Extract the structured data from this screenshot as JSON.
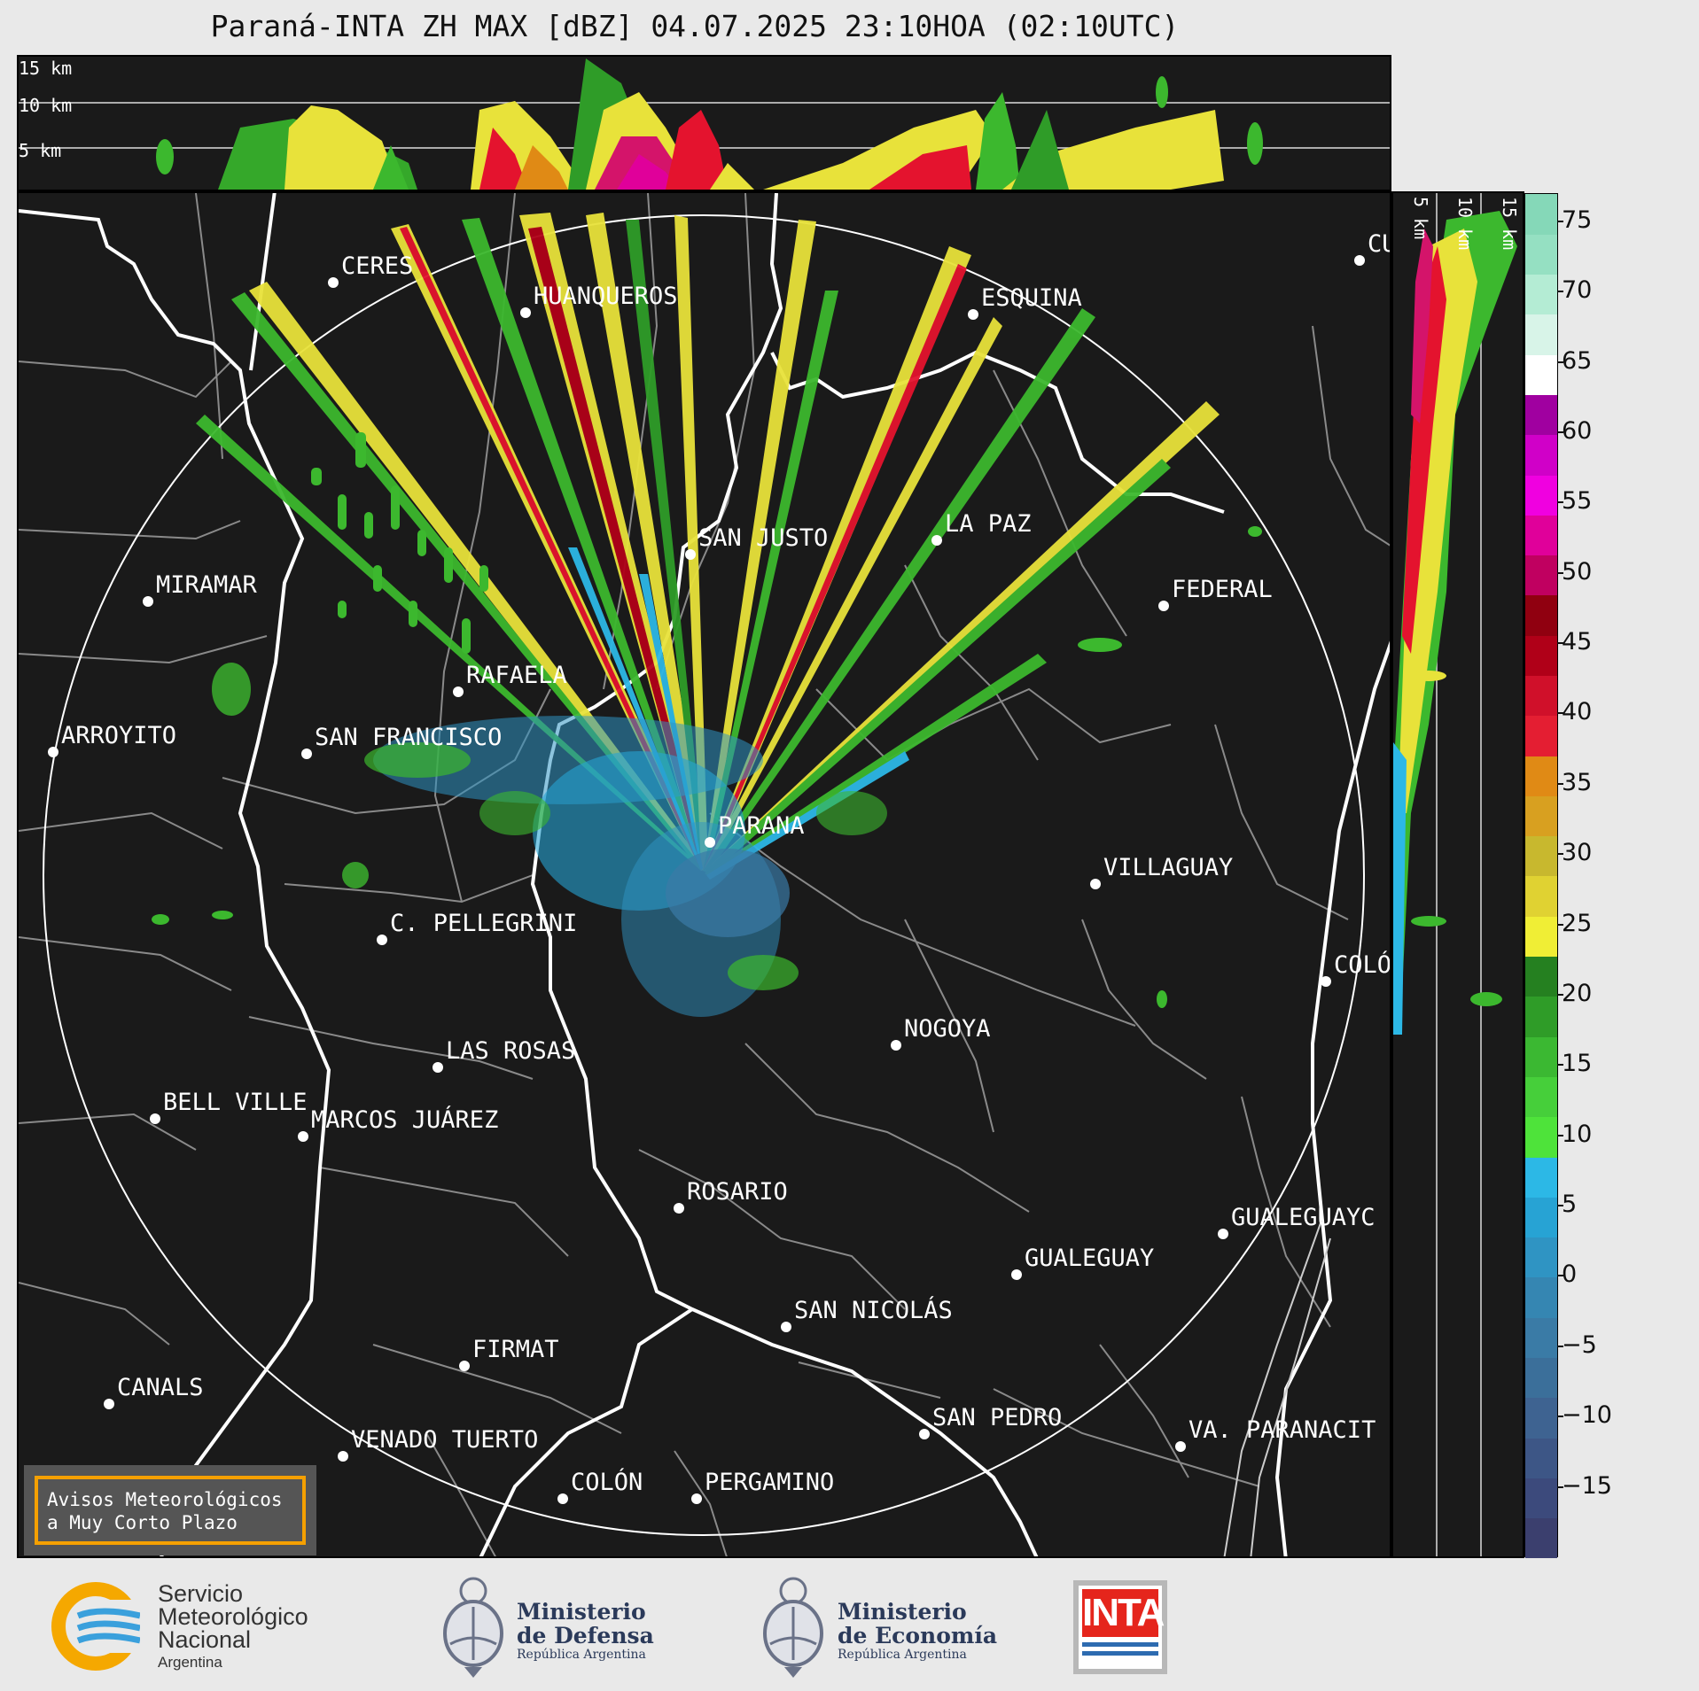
{
  "title": "Paraná-INTA ZH MAX [dBZ] 04.07.2025 23:10HOA (02:10UTC)",
  "top_panel": {
    "height_labels": [
      "15 km",
      "10 km",
      "5 km"
    ]
  },
  "side_panel": {
    "height_labels": [
      "5 km",
      "10 km",
      "15 km"
    ]
  },
  "colorbar": {
    "ticks": [
      "75",
      "70",
      "65",
      "60",
      "55",
      "50",
      "45",
      "40",
      "35",
      "30",
      "25",
      "20",
      "15",
      "10",
      "5",
      "0",
      "−5",
      "−10",
      "−15"
    ],
    "tick_values": [
      75,
      70,
      65,
      60,
      55,
      50,
      45,
      40,
      35,
      30,
      25,
      20,
      15,
      10,
      5,
      0,
      -5,
      -10,
      -15
    ],
    "range": [
      -20,
      77
    ],
    "colors": [
      "#3b3f6e",
      "#3c4a7c",
      "#3d5686",
      "#3e6391",
      "#3b6f9a",
      "#3a7ba6",
      "#3586b2",
      "#2f94c3",
      "#27a3d4",
      "#2cb8e6",
      "#4ee33a",
      "#46cf3a",
      "#3bb832",
      "#2f9c28",
      "#258020",
      "#f0ee35",
      "#e0d232",
      "#c8b82e",
      "#d8a020",
      "#e08a15",
      "#e41e32",
      "#d0102a",
      "#b00018",
      "#900010",
      "#c00060",
      "#e0009a",
      "#f000e0",
      "#d000c8",
      "#a000a0",
      "#ffffff",
      "#d8f4e8",
      "#b4ecd4",
      "#95e0c2",
      "#85d8b8"
    ]
  },
  "map": {
    "radar_site": "PARANA",
    "range_ring": "circle",
    "cities": [
      {
        "name": "CERES"
      },
      {
        "name": "HUANQUEROS"
      },
      {
        "name": "ESQUINA"
      },
      {
        "name": "CU"
      },
      {
        "name": "MIRAMAR"
      },
      {
        "name": "SAN JUSTO"
      },
      {
        "name": "LA PAZ"
      },
      {
        "name": "FEDERAL"
      },
      {
        "name": "RAFAELA"
      },
      {
        "name": "ARROYITO"
      },
      {
        "name": "SAN FRANCISCO"
      },
      {
        "name": "PARANA"
      },
      {
        "name": "VILLAGUAY"
      },
      {
        "name": "C. PELLEGRINI"
      },
      {
        "name": "COLÓ"
      },
      {
        "name": "NOGOYA"
      },
      {
        "name": "LAS ROSAS"
      },
      {
        "name": "BELL VILLE"
      },
      {
        "name": "MARCOS JUÁREZ"
      },
      {
        "name": "ROSARIO"
      },
      {
        "name": "GUALEGUAYC"
      },
      {
        "name": "GUALEGUAY"
      },
      {
        "name": "SAN NICOLÁS"
      },
      {
        "name": "FIRMAT"
      },
      {
        "name": "CANALS"
      },
      {
        "name": "SAN PEDRO"
      },
      {
        "name": "VA. PARANACIT"
      },
      {
        "name": "VENADO TUERTO"
      },
      {
        "name": "COLÓN"
      },
      {
        "name": "PERGAMINO"
      }
    ],
    "notice": [
      "Avisos Meteorológicos",
      "a Muy Corto Plazo"
    ]
  },
  "footer": {
    "smn": [
      "Servicio",
      "Meteorológico",
      "Nacional",
      "Argentina"
    ],
    "defensa": [
      "Ministerio",
      "de Defensa",
      "República Argentina"
    ],
    "economia": [
      "Ministerio",
      "de Economía",
      "República Argentina"
    ],
    "inta": "INTA"
  }
}
